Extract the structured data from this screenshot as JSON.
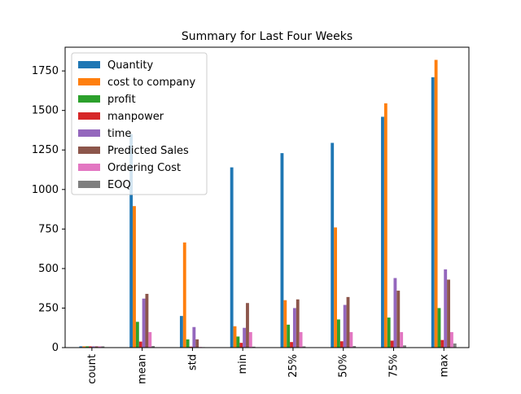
{
  "chart_data": {
    "type": "bar",
    "title": "Summary for Last Four Weeks",
    "xlabel": "",
    "ylabel": "",
    "categories": [
      "count",
      "mean",
      "std",
      "min",
      "25%",
      "50%",
      "75%",
      "max"
    ],
    "ylim": [
      0,
      1900
    ],
    "yticks": [
      0,
      250,
      500,
      750,
      1000,
      1250,
      1500,
      1750
    ],
    "legend_position": "top-left",
    "grid": false,
    "series": [
      {
        "name": "Quantity",
        "color": "#1f77b4",
        "values": [
          8,
          1350,
          200,
          1140,
          1230,
          1295,
          1460,
          1710
        ]
      },
      {
        "name": "cost to company",
        "color": "#ff7f0e",
        "values": [
          8,
          895,
          665,
          135,
          300,
          760,
          1545,
          1820
        ]
      },
      {
        "name": "profit",
        "color": "#2ca02c",
        "values": [
          8,
          163,
          52,
          70,
          145,
          178,
          190,
          250
        ]
      },
      {
        "name": "manpower",
        "color": "#d62728",
        "values": [
          8,
          38,
          6,
          30,
          35,
          40,
          44,
          48
        ]
      },
      {
        "name": "time",
        "color": "#9467bd",
        "values": [
          8,
          310,
          130,
          125,
          250,
          270,
          440,
          495
        ]
      },
      {
        "name": "Predicted Sales",
        "color": "#8c564b",
        "values": [
          8,
          340,
          52,
          282,
          305,
          320,
          360,
          430
        ]
      },
      {
        "name": "Ordering Cost",
        "color": "#e377c2",
        "values": [
          8,
          98,
          4,
          98,
          98,
          98,
          98,
          98
        ]
      },
      {
        "name": "EOQ",
        "color": "#7f7f7f",
        "values": [
          8,
          10,
          3,
          6,
          8,
          10,
          14,
          26
        ]
      }
    ]
  }
}
